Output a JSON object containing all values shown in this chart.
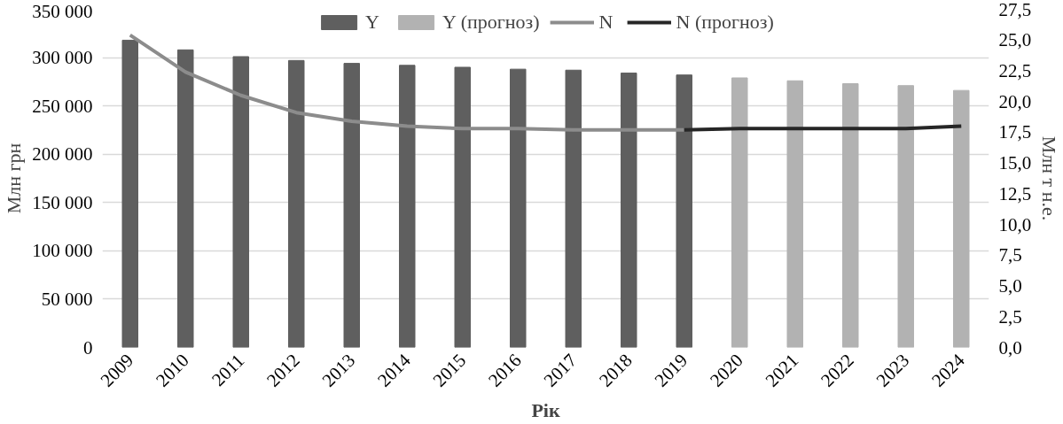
{
  "chart_data": {
    "type": "bar",
    "xlabel": "Рік",
    "ylabel": "Млн грн",
    "y2label": "Млн т н.е.",
    "categories": [
      "2009",
      "2010",
      "2011",
      "2012",
      "2013",
      "2014",
      "2015",
      "2016",
      "2017",
      "2018",
      "2019",
      "2020",
      "2021",
      "2022",
      "2023",
      "2024"
    ],
    "series": [
      {
        "name": "Y",
        "color": "#5f5f5f",
        "values": [
          318000,
          308000,
          301000,
          297000,
          294000,
          292000,
          290000,
          288000,
          287000,
          284000,
          282000,
          null,
          null,
          null,
          null,
          null
        ]
      },
      {
        "name": "Y (прогноз)",
        "color": "#b2b2b2",
        "values": [
          null,
          null,
          null,
          null,
          null,
          null,
          null,
          null,
          null,
          null,
          null,
          279000,
          276000,
          273000,
          271000,
          266000
        ]
      },
      {
        "name": "N",
        "type": "line",
        "axis": "y2",
        "color": "#8c8c8c",
        "values": [
          25.4,
          22.4,
          20.5,
          19.1,
          18.4,
          18.0,
          17.8,
          17.8,
          17.7,
          17.7,
          17.7,
          null,
          null,
          null,
          null,
          null
        ]
      },
      {
        "name": "N (прогноз)",
        "type": "line",
        "axis": "y2",
        "color": "#262626",
        "values": [
          null,
          null,
          null,
          null,
          null,
          null,
          null,
          null,
          null,
          null,
          17.7,
          17.8,
          17.8,
          17.8,
          17.8,
          18.0
        ]
      }
    ],
    "ylim": [
      0,
      350000
    ],
    "yticks": [
      0,
      {
        "value": 50000,
        "label": "50 000"
      },
      {
        "value": 100000,
        "label": "100 000"
      },
      {
        "value": 150000,
        "label": "150 000"
      },
      {
        "value": 200000,
        "label": "200 000"
      },
      {
        "value": 250000,
        "label": "250 000"
      },
      {
        "value": 300000,
        "label": "300 000"
      },
      {
        "value": 350000,
        "label": "350 000"
      }
    ],
    "y2lim": [
      0,
      27.5
    ],
    "y2ticks": [
      {
        "value": 0,
        "label": "0,0"
      },
      {
        "value": 2.5,
        "label": "2,5"
      },
      {
        "value": 5,
        "label": "5,0"
      },
      {
        "value": 7.5,
        "label": "7,5"
      },
      {
        "value": 10,
        "label": "10,0"
      },
      {
        "value": 12.5,
        "label": "12,5"
      },
      {
        "value": 15,
        "label": "15,0"
      },
      {
        "value": 17.5,
        "label": "17,5"
      },
      {
        "value": 20,
        "label": "20,0"
      },
      {
        "value": 22.5,
        "label": "22,5"
      },
      {
        "value": 25,
        "label": "25,0"
      },
      {
        "value": 27.5,
        "label": "27,5"
      }
    ],
    "grid": "y",
    "legend": "top",
    "line_style": "solid",
    "marker": "none"
  }
}
